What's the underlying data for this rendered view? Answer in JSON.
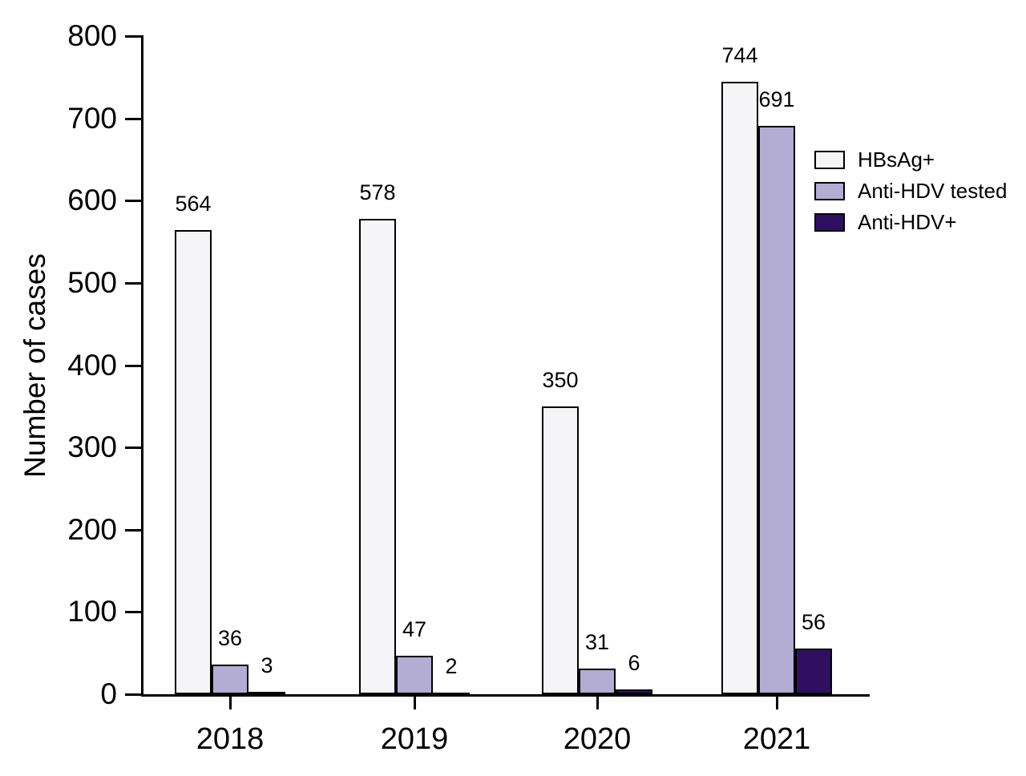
{
  "figure": {
    "background": "#ffffff",
    "text_color": "#000000",
    "axis_color": "#000000"
  },
  "chart_data": {
    "type": "bar",
    "title": "",
    "categories": [
      "2018",
      "2019",
      "2020",
      "2021"
    ],
    "series": [
      {
        "name": "HBsAg+",
        "color": "#f5f4f6",
        "values": [
          564,
          578,
          350,
          744
        ]
      },
      {
        "name": "Anti-HDV tested",
        "color": "#b3acd3",
        "values": [
          36,
          47,
          31,
          691
        ]
      },
      {
        "name": "Anti-HDV+",
        "color": "#2f1060",
        "values": [
          3,
          2,
          6,
          56
        ]
      }
    ],
    "xlabel": "",
    "ylabel": "Number of cases",
    "ylim": [
      0,
      800
    ],
    "yticks": [
      0,
      100,
      200,
      300,
      400,
      500,
      600,
      700,
      800
    ],
    "bar_outline_color": "#000000",
    "value_labels": true,
    "legend_position": "right",
    "grid": false
  }
}
